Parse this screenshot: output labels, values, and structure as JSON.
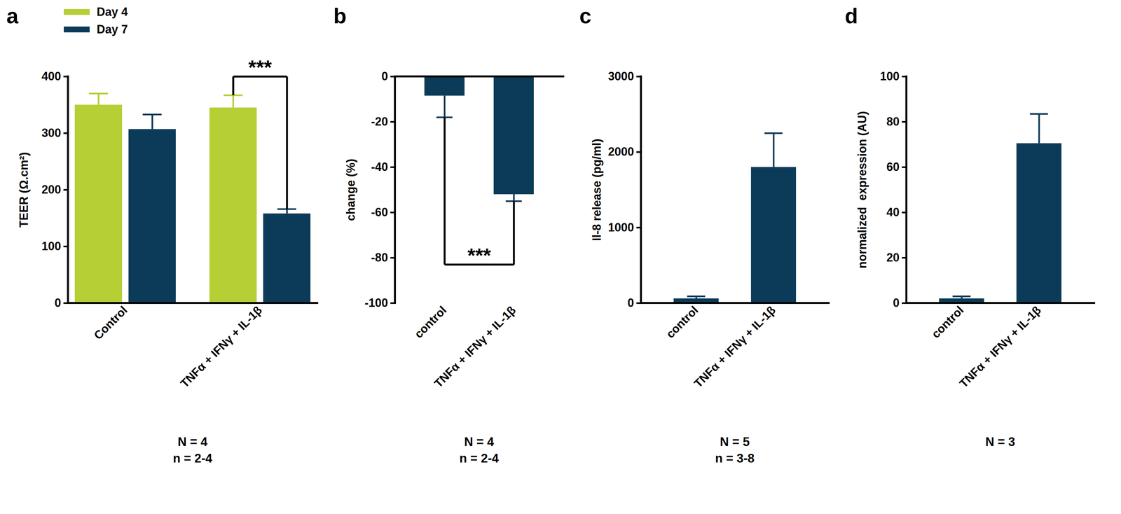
{
  "chart_data": [
    {
      "type": "bar",
      "title": "a",
      "categories": [
        "Control",
        "TNFα + IFNγ + IL-1β"
      ],
      "series": [
        {
          "name": "Day 4",
          "color": "#b5cf35",
          "values": [
            350,
            345
          ],
          "errors": [
            20,
            22
          ]
        },
        {
          "name": "Day 7",
          "color": "#0b3b58",
          "values": [
            307,
            158
          ],
          "errors": [
            26,
            8
          ]
        }
      ],
      "ylabel": "TEER (Ω.cm²)",
      "ylim": [
        0,
        400
      ],
      "yticks": [
        0,
        100,
        200,
        300,
        400
      ],
      "legend": "top-left",
      "significance": [
        {
          "category": "TNFα + IFNγ + IL-1β",
          "between": [
            "Day 4",
            "Day 7"
          ],
          "label": "***"
        }
      ],
      "caption": [
        "N = 4",
        "n = 2-4"
      ]
    },
    {
      "type": "bar",
      "title": "b",
      "categories": [
        "control",
        "TNFα + IFNγ + IL-1β"
      ],
      "values": [
        -8.5,
        -52
      ],
      "errors": [
        9.5,
        3
      ],
      "color": "#0b3b58",
      "ylabel": "change (%)",
      "ylim": [
        -100,
        0
      ],
      "yticks": [
        -100,
        -80,
        -60,
        -40,
        -20,
        0
      ],
      "significance": [
        {
          "between": [
            "control",
            "TNFα + IFNγ + IL-1β"
          ],
          "label": "***"
        }
      ],
      "caption": [
        "N = 4",
        "n = 2-4"
      ]
    },
    {
      "type": "bar",
      "title": "c",
      "categories": [
        "control",
        "TNFα + IFNγ + IL-1β"
      ],
      "values": [
        60,
        1800
      ],
      "errors": [
        30,
        450
      ],
      "color": "#0b3b58",
      "ylabel": "Il-8 release (pg/ml)",
      "ylim": [
        0,
        3000
      ],
      "yticks": [
        0,
        1000,
        2000,
        3000
      ],
      "caption": [
        "N = 5",
        "n = 3-8"
      ]
    },
    {
      "type": "bar",
      "title": "d",
      "categories": [
        "control",
        "TNFα + IFNγ + IL-1β"
      ],
      "values": [
        2,
        70.5
      ],
      "errors": [
        1,
        13
      ],
      "color": "#0b3b58",
      "ylabel": "normalized  expression (AU)",
      "ylim": [
        0,
        100
      ],
      "yticks": [
        0,
        20,
        40,
        60,
        80,
        100
      ],
      "caption": [
        "N = 3"
      ]
    }
  ]
}
